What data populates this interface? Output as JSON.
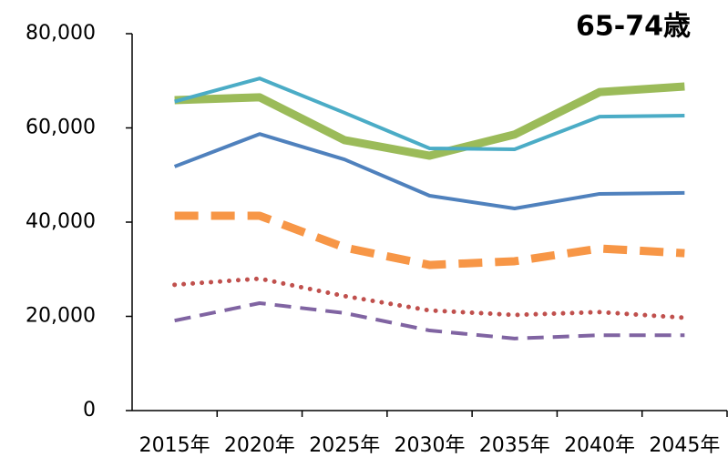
{
  "chart_data": {
    "type": "line",
    "title": "65-74歳",
    "categories": [
      "2015年",
      "2020年",
      "2025年",
      "2030年",
      "2035年",
      "2040年",
      "2045年"
    ],
    "series": [
      {
        "color": "#9bbb59",
        "style": "solid",
        "thick": true,
        "values": [
          65900,
          66500,
          57400,
          54100,
          58600,
          67600,
          68800
        ]
      },
      {
        "color": "#4bacc6",
        "style": "solid",
        "thick": false,
        "values": [
          65600,
          70500,
          63200,
          55650,
          55450,
          62400,
          62600
        ]
      },
      {
        "color": "#4f81bd",
        "style": "solid",
        "thick": false,
        "values": [
          51800,
          58700,
          53300,
          45600,
          42900,
          46000,
          46200
        ]
      },
      {
        "color": "#f79646",
        "style": "dashed",
        "thick": true,
        "values": [
          41350,
          41350,
          34600,
          30900,
          31700,
          34400,
          33400
        ]
      },
      {
        "color": "#c0504d",
        "style": "dotted",
        "thick": false,
        "values": [
          26700,
          28000,
          24300,
          21250,
          20300,
          20900,
          19700
        ]
      },
      {
        "color": "#8064a2",
        "style": "dashed",
        "thick": false,
        "values": [
          19100,
          22800,
          20700,
          17000,
          15300,
          16000,
          16000
        ]
      }
    ],
    "ylim": [
      0,
      80000
    ],
    "yticks": [
      0,
      {
        "value": 20000,
        "label": "20,000"
      },
      {
        "value": 40000,
        "label": "40,000"
      },
      {
        "value": 60000,
        "label": "60,000"
      },
      {
        "value": 80000,
        "label": "80,000"
      }
    ]
  }
}
